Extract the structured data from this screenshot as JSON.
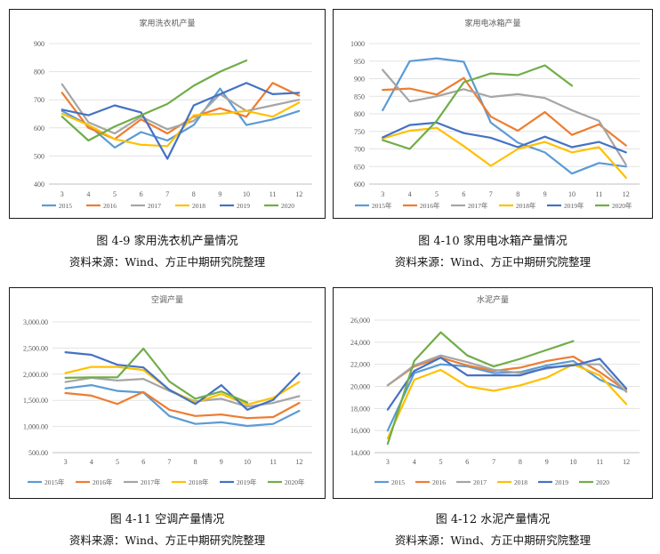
{
  "colors": {
    "2015": "#5b9bd5",
    "2016": "#ed7d31",
    "2017": "#a5a5a5",
    "2018": "#ffc000",
    "2019": "#4472c4",
    "2020": "#70ad47"
  },
  "chart_data": [
    {
      "type": "line",
      "title": "家用洗衣机产量",
      "categories": [
        "3",
        "4",
        "5",
        "6",
        "7",
        "8",
        "9",
        "10",
        "11",
        "12"
      ],
      "ylim": [
        400,
        900
      ],
      "yticks": [
        "400",
        "500",
        "600",
        "700",
        "800",
        "900"
      ],
      "ytick_values": [
        400,
        500,
        600,
        700,
        800,
        900
      ],
      "grid": true,
      "legend_position": "bottom",
      "series": [
        {
          "name": "2015",
          "values": [
            660,
            610,
            530,
            585,
            555,
            610,
            740,
            610,
            630,
            660
          ]
        },
        {
          "name": "2016",
          "values": [
            725,
            600,
            560,
            630,
            580,
            640,
            670,
            640,
            760,
            715
          ]
        },
        {
          "name": "2017",
          "values": [
            755,
            620,
            580,
            640,
            595,
            625,
            720,
            660,
            680,
            700
          ]
        },
        {
          "name": "2018",
          "values": [
            650,
            610,
            560,
            540,
            535,
            645,
            650,
            660,
            640,
            690
          ]
        },
        {
          "name": "2019",
          "values": [
            665,
            645,
            680,
            655,
            490,
            680,
            720,
            760,
            720,
            725
          ]
        },
        {
          "name": "2020",
          "values": [
            640,
            555,
            605,
            645,
            685,
            750,
            800,
            840,
            null,
            null
          ]
        }
      ]
    },
    {
      "type": "line",
      "title": "家用电冰箱产量",
      "categories": [
        "3",
        "4",
        "5",
        "6",
        "7",
        "8",
        "9",
        "10",
        "11",
        "12"
      ],
      "ylim": [
        600,
        1000
      ],
      "yticks": [
        "600",
        "650",
        "700",
        "750",
        "800",
        "850",
        "900",
        "950",
        "1000"
      ],
      "ytick_values": [
        600,
        650,
        700,
        750,
        800,
        850,
        900,
        950,
        1000
      ],
      "grid": true,
      "legend_position": "bottom",
      "series": [
        {
          "name": "2015年",
          "values": [
            810,
            950,
            958,
            948,
            775,
            718,
            690,
            630,
            660,
            650
          ]
        },
        {
          "name": "2016年",
          "values": [
            868,
            872,
            855,
            902,
            792,
            752,
            805,
            740,
            770,
            710
          ]
        },
        {
          "name": "2017年",
          "values": [
            925,
            835,
            850,
            870,
            848,
            856,
            845,
            810,
            780,
            655
          ]
        },
        {
          "name": "2018年",
          "values": [
            730,
            752,
            760,
            708,
            652,
            700,
            720,
            690,
            705,
            618
          ]
        },
        {
          "name": "2019年",
          "values": [
            733,
            768,
            775,
            745,
            732,
            705,
            735,
            705,
            720,
            690
          ]
        },
        {
          "name": "2020年",
          "values": [
            725,
            700,
            780,
            890,
            915,
            910,
            938,
            880,
            null,
            null
          ]
        }
      ]
    },
    {
      "type": "line",
      "title": "空调产量",
      "categories": [
        "3",
        "4",
        "5",
        "6",
        "7",
        "8",
        "9",
        "10",
        "11",
        "12"
      ],
      "ylim": [
        500,
        3000
      ],
      "yticks": [
        "500.00",
        "1,000.00",
        "1,500.00",
        "2,000.00",
        "2,500.00",
        "3,000.00"
      ],
      "ytick_values": [
        500,
        1000,
        1500,
        2000,
        2500,
        3000
      ],
      "grid": true,
      "legend_position": "bottom",
      "series": [
        {
          "name": "2015年",
          "values": [
            1730,
            1790,
            1680,
            1650,
            1200,
            1050,
            1080,
            1010,
            1050,
            1300
          ]
        },
        {
          "name": "2016年",
          "values": [
            1640,
            1590,
            1430,
            1660,
            1320,
            1200,
            1230,
            1160,
            1180,
            1450
          ]
        },
        {
          "name": "2017年",
          "values": [
            1850,
            1930,
            1880,
            1910,
            1680,
            1480,
            1530,
            1380,
            1450,
            1580
          ]
        },
        {
          "name": "2018年",
          "values": [
            2020,
            2140,
            2140,
            2080,
            1700,
            1460,
            1620,
            1420,
            1550,
            1850
          ]
        },
        {
          "name": "2019年",
          "values": [
            2420,
            2370,
            2180,
            2130,
            1700,
            1430,
            1790,
            1320,
            1510,
            2020
          ]
        },
        {
          "name": "2020年",
          "values": [
            1930,
            1940,
            1940,
            2490,
            1860,
            1530,
            1670,
            1460,
            null,
            null
          ]
        }
      ]
    },
    {
      "type": "line",
      "title": "水泥产量",
      "categories": [
        "3",
        "4",
        "5",
        "6",
        "7",
        "8",
        "9",
        "10",
        "11",
        "12"
      ],
      "ylim": [
        14000,
        26000
      ],
      "yticks": [
        "14,000",
        "16,000",
        "18,000",
        "20,000",
        "22,000",
        "24,000",
        "26,000"
      ],
      "ytick_values": [
        14000,
        16000,
        18000,
        20000,
        22000,
        24000,
        26000
      ],
      "grid": true,
      "legend_position": "bottom",
      "series": [
        {
          "name": "2015",
          "values": [
            16000,
            21200,
            22000,
            21800,
            21200,
            21300,
            21900,
            22300,
            20600,
            19600
          ]
        },
        {
          "name": "2016",
          "values": [
            20100,
            21800,
            22600,
            21900,
            21400,
            21700,
            22300,
            22700,
            21300,
            19600
          ]
        },
        {
          "name": "2017",
          "values": [
            20100,
            21900,
            22800,
            22200,
            21500,
            21200,
            21600,
            22000,
            22000,
            19500
          ]
        },
        {
          "name": "2018",
          "values": [
            15300,
            20600,
            21500,
            20000,
            19600,
            20100,
            20800,
            22000,
            21000,
            18400
          ]
        },
        {
          "name": "2019",
          "values": [
            17900,
            21400,
            22600,
            21000,
            21000,
            21000,
            21700,
            21900,
            22500,
            19800
          ]
        },
        {
          "name": "2020",
          "values": [
            14800,
            22300,
            24900,
            22800,
            21800,
            22500,
            23300,
            24100,
            null,
            null
          ]
        }
      ]
    }
  ],
  "captions": [
    {
      "title": "图 4-9  家用洗衣机产量情况",
      "source": "资料来源：Wind、方正中期研究院整理"
    },
    {
      "title": "图 4-10  家用电冰箱产量情况",
      "source": "资料来源：Wind、方正中期研究院整理"
    },
    {
      "title": "图 4-11  空调产量情况",
      "source": "资料来源：Wind、方正中期研究院整理"
    },
    {
      "title": "图 4-12  水泥产量情况",
      "source": "资料来源：Wind、方正中期研究院整理"
    }
  ]
}
